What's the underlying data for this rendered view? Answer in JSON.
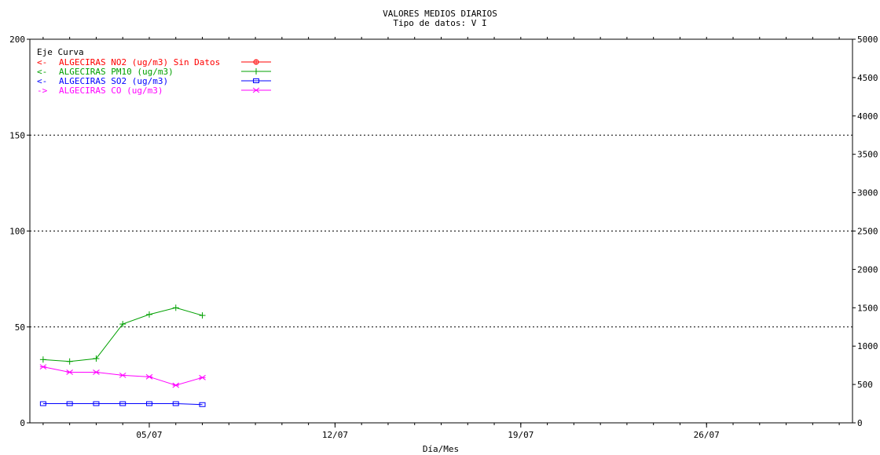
{
  "chart_data": {
    "type": "line",
    "title": "VALORES MEDIOS DIARIOS",
    "subtitle": "Tipo de datos:  V I",
    "xlabel": "Día/Mes",
    "x_range": [
      "01/07",
      "31/07"
    ],
    "x_tick_labels": [
      {
        "x": "05/07",
        "label": "05/07"
      },
      {
        "x": "12/07",
        "label": "12/07"
      },
      {
        "x": "19/07",
        "label": "19/07"
      },
      {
        "x": "26/07",
        "label": "26/07"
      }
    ],
    "y_left": {
      "ylim": [
        0,
        200
      ],
      "ticks": [
        "0",
        "50",
        "100",
        "150",
        "200"
      ]
    },
    "y_right": {
      "ylim": [
        0,
        5000
      ],
      "ticks": [
        "0",
        "500",
        "1000",
        "1500",
        "2000",
        "2500",
        "3000",
        "3500",
        "4000",
        "4500",
        "5000"
      ]
    },
    "grid": "horizontal dotted at 50, 100, 150 (left axis)",
    "legend_header": "Eje Curva",
    "legend_position": "top-left",
    "series": [
      {
        "name": "ALGECIRAS NO2  (ug/m3) Sin Datos",
        "axis_marker": "<-",
        "axis": "left",
        "color": "#ff0000",
        "marker": "circle-cross",
        "points": []
      },
      {
        "name": "ALGECIRAS PM10  (ug/m3)",
        "axis_marker": "<-",
        "axis": "left",
        "color": "#00a000",
        "marker": "plus",
        "points": [
          {
            "x": "01/07",
            "y": 33
          },
          {
            "x": "02/07",
            "y": 32
          },
          {
            "x": "03/07",
            "y": 33.5
          },
          {
            "x": "04/07",
            "y": 51.5
          },
          {
            "x": "05/07",
            "y": 56.5
          },
          {
            "x": "06/07",
            "y": 60
          },
          {
            "x": "07/07",
            "y": 56
          }
        ]
      },
      {
        "name": "ALGECIRAS SO2  (ug/m3)",
        "axis_marker": "<-",
        "axis": "left",
        "color": "#0000ff",
        "marker": "square",
        "points": [
          {
            "x": "01/07",
            "y": 10
          },
          {
            "x": "02/07",
            "y": 10
          },
          {
            "x": "03/07",
            "y": 10
          },
          {
            "x": "04/07",
            "y": 10
          },
          {
            "x": "05/07",
            "y": 10
          },
          {
            "x": "06/07",
            "y": 10
          },
          {
            "x": "07/07",
            "y": 9.5
          }
        ]
      },
      {
        "name": "ALGECIRAS CO  (ug/m3)",
        "axis_marker": "->",
        "axis": "right",
        "color": "#ff00ff",
        "marker": "x-star",
        "points": [
          {
            "x": "01/07",
            "y": 730
          },
          {
            "x": "02/07",
            "y": 660
          },
          {
            "x": "03/07",
            "y": 660
          },
          {
            "x": "04/07",
            "y": 620
          },
          {
            "x": "05/07",
            "y": 600
          },
          {
            "x": "06/07",
            "y": 490
          },
          {
            "x": "07/07",
            "y": 590
          }
        ]
      }
    ]
  }
}
